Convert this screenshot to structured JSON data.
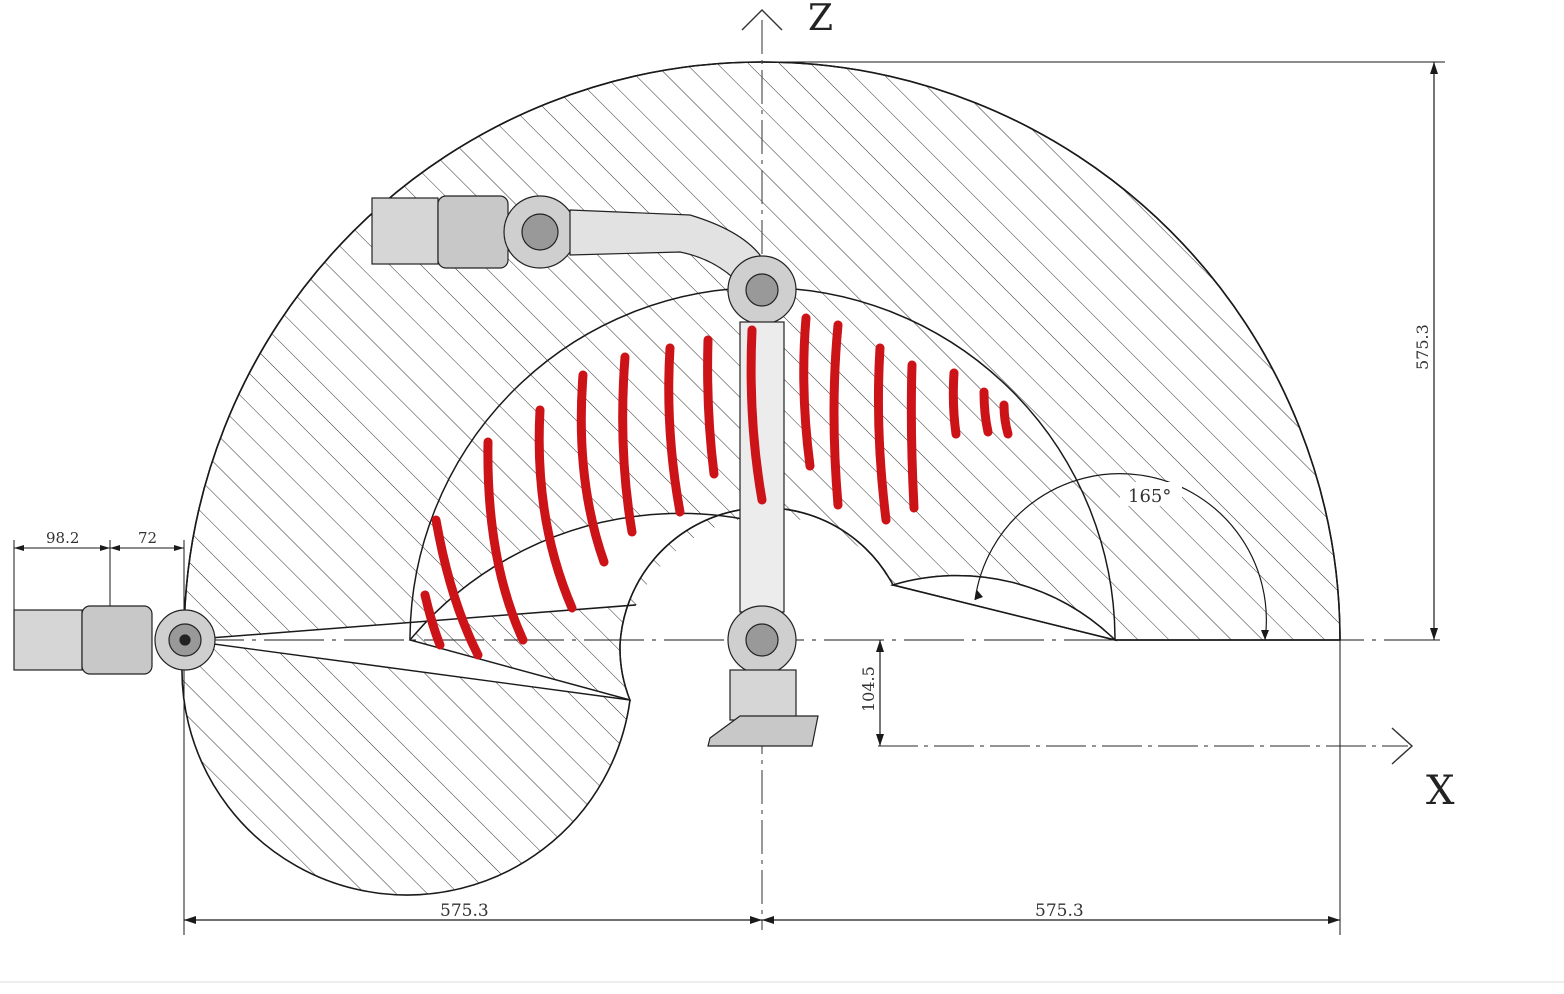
{
  "axes": {
    "z_label": "Z",
    "x_label": "X"
  },
  "dimensions": {
    "flange_length": "98.2",
    "flange_offset": "72",
    "total_height": "575.3",
    "base_height": "104.5",
    "left_reach": "575.3",
    "right_reach": "575.3",
    "joint_angle": "165°"
  },
  "colors": {
    "line": "#1a1a1a",
    "hatch": "#333333",
    "annotation": "#cc1418"
  }
}
